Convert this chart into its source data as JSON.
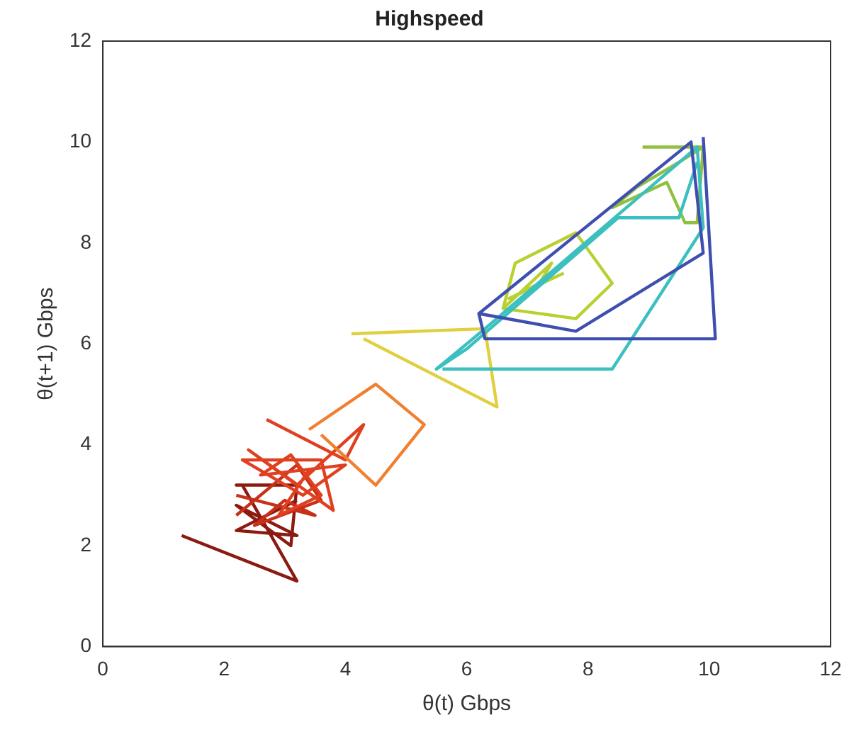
{
  "chart_data": {
    "type": "line",
    "title": "Highspeed",
    "xlabel": "θ(t) Gbps",
    "ylabel": "θ(t+1) Gbps",
    "xlim": [
      0,
      12
    ],
    "ylim": [
      0,
      12
    ],
    "xticks": [
      0,
      2,
      4,
      6,
      8,
      10,
      12
    ],
    "yticks": [
      0,
      2,
      4,
      6,
      8,
      10,
      12
    ],
    "grid": false,
    "legend": false,
    "marker": "none",
    "line_style": "solid",
    "series": [
      {
        "color": "#3f4fb0",
        "x": [
          6.2,
          9.7,
          9.9,
          7.8,
          6.2,
          6.3,
          10.1,
          9.9
        ],
        "values": [
          6.6,
          10.0,
          7.8,
          6.25,
          6.6,
          6.1,
          6.1,
          10.1
        ]
      },
      {
        "color": "#3bbfbf",
        "x": [
          5.6,
          8.4,
          9.9,
          9.8,
          6.3,
          5.5,
          6.0,
          8.5,
          9.5,
          9.8
        ],
        "values": [
          5.5,
          5.5,
          8.3,
          9.9,
          6.3,
          5.5,
          5.9,
          8.5,
          8.5,
          9.6
        ]
      },
      {
        "color": "#90c040",
        "x": [
          8.9,
          9.9,
          9.8,
          9.6,
          9.3,
          8.4,
          8.8,
          9.5,
          9.9
        ],
        "values": [
          9.9,
          9.9,
          8.4,
          8.4,
          9.2,
          8.7,
          9.1,
          9.6,
          9.9
        ]
      },
      {
        "color": "#b8d030",
        "x": [
          6.6,
          7.8,
          8.4,
          7.8,
          6.8,
          6.6,
          7.4,
          7.2,
          6.7,
          7.6
        ],
        "values": [
          6.7,
          6.5,
          7.2,
          8.2,
          7.6,
          6.7,
          7.6,
          7.2,
          6.9,
          7.4
        ]
      },
      {
        "color": "#e0d040",
        "x": [
          4.1,
          6.3,
          6.5,
          4.3
        ],
        "values": [
          6.2,
          6.3,
          4.75,
          6.1
        ]
      },
      {
        "color": "#f08030",
        "x": [
          3.4,
          4.5,
          5.3,
          4.5,
          3.6
        ],
        "values": [
          4.3,
          5.2,
          4.4,
          3.2,
          4.2
        ]
      },
      {
        "color": "#e04020",
        "x": [
          2.7,
          4.0,
          4.3,
          3.2,
          2.4,
          3.8,
          3.6,
          2.3,
          3.3,
          4.0,
          2.6,
          3.1,
          3.6,
          2.9,
          3.4
        ],
        "values": [
          4.5,
          3.7,
          4.4,
          3.2,
          3.9,
          2.7,
          3.7,
          3.7,
          3.0,
          3.6,
          3.4,
          3.8,
          3.0,
          2.6,
          3.5
        ]
      },
      {
        "color": "#c83018",
        "x": [
          2.2,
          3.2,
          3.6,
          2.5,
          3.0,
          3.5,
          2.2
        ],
        "values": [
          2.6,
          3.6,
          2.9,
          2.4,
          2.9,
          2.6,
          3.0
        ]
      },
      {
        "color": "#8b1a10",
        "x": [
          1.3,
          3.2,
          2.3,
          2.2,
          3.2,
          3.1,
          2.2,
          3.2,
          2.2,
          3.2
        ],
        "values": [
          2.2,
          1.3,
          3.2,
          3.2,
          3.2,
          2.0,
          2.8,
          2.2,
          2.3,
          2.9
        ]
      }
    ]
  }
}
